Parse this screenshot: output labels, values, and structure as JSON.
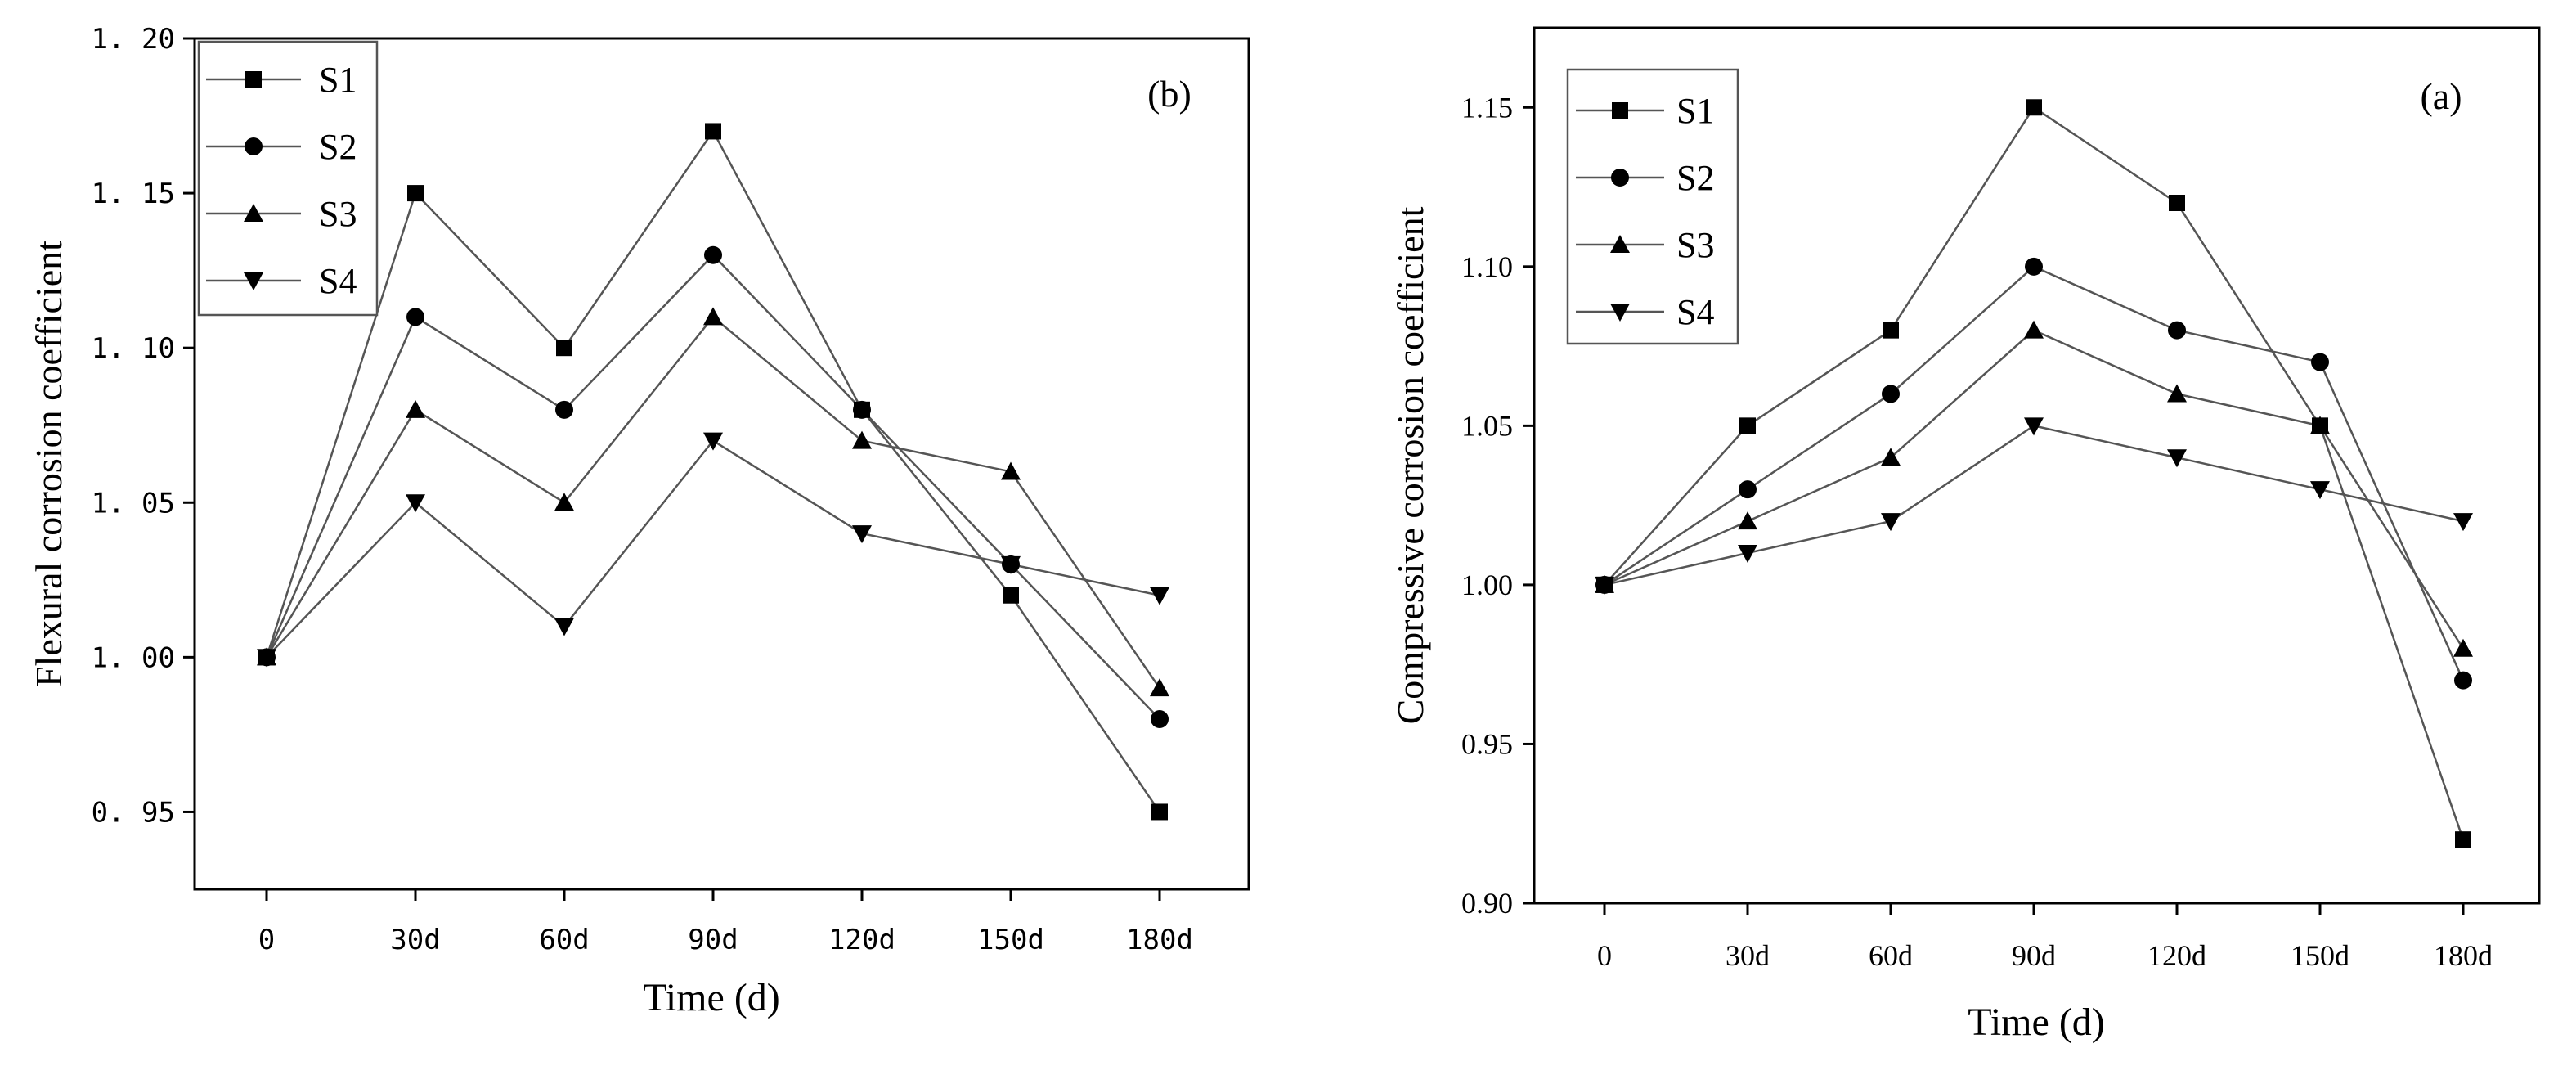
{
  "chart_data": [
    {
      "type": "line",
      "panel_label": "(b)",
      "title": "",
      "xlabel": "Time (d)",
      "ylabel": "Flexural corrosion coefficient",
      "categories": [
        "0",
        "30d",
        "60d",
        "90d",
        "120d",
        "150d",
        "180d"
      ],
      "ylim": [
        0.925,
        1.2
      ],
      "yticks": [
        0.95,
        1.0,
        1.05,
        1.1,
        1.15,
        1.2
      ],
      "ytick_labels": [
        "0. 95",
        "1. 00",
        "1. 05",
        "1. 10",
        "1. 15",
        "1. 20"
      ],
      "grid": false,
      "legend_position": "top-left",
      "series": [
        {
          "name": "S1",
          "marker": "square",
          "values": [
            1.0,
            1.15,
            1.1,
            1.17,
            1.08,
            1.02,
            0.95
          ]
        },
        {
          "name": "S2",
          "marker": "circle",
          "values": [
            1.0,
            1.11,
            1.08,
            1.13,
            1.08,
            1.03,
            0.98
          ]
        },
        {
          "name": "S3",
          "marker": "triangle-up",
          "values": [
            1.0,
            1.08,
            1.05,
            1.11,
            1.07,
            1.06,
            0.99
          ]
        },
        {
          "name": "S4",
          "marker": "triangle-down",
          "values": [
            1.0,
            1.05,
            1.01,
            1.07,
            1.04,
            1.03,
            1.02
          ]
        }
      ]
    },
    {
      "type": "line",
      "panel_label": "(a)",
      "title": "",
      "xlabel": "Time (d)",
      "ylabel": "Compressive corrosion coefficient",
      "categories": [
        "0",
        "30d",
        "60d",
        "90d",
        "120d",
        "150d",
        "180d"
      ],
      "ylim": [
        0.9,
        1.175
      ],
      "yticks": [
        0.9,
        0.95,
        1.0,
        1.05,
        1.1,
        1.15
      ],
      "ytick_labels": [
        "0.90",
        "0.95",
        "1.00",
        "1.05",
        "1.10",
        "1.15"
      ],
      "grid": false,
      "legend_position": "top-left",
      "series": [
        {
          "name": "S1",
          "marker": "square",
          "values": [
            1.0,
            1.05,
            1.08,
            1.15,
            1.12,
            1.05,
            0.92
          ]
        },
        {
          "name": "S2",
          "marker": "circle",
          "values": [
            1.0,
            1.03,
            1.06,
            1.1,
            1.08,
            1.07,
            0.97
          ]
        },
        {
          "name": "S3",
          "marker": "triangle-up",
          "values": [
            1.0,
            1.02,
            1.04,
            1.08,
            1.06,
            1.05,
            0.98
          ]
        },
        {
          "name": "S4",
          "marker": "triangle-down",
          "values": [
            1.0,
            1.01,
            1.02,
            1.05,
            1.04,
            1.03,
            1.02
          ]
        }
      ]
    }
  ]
}
